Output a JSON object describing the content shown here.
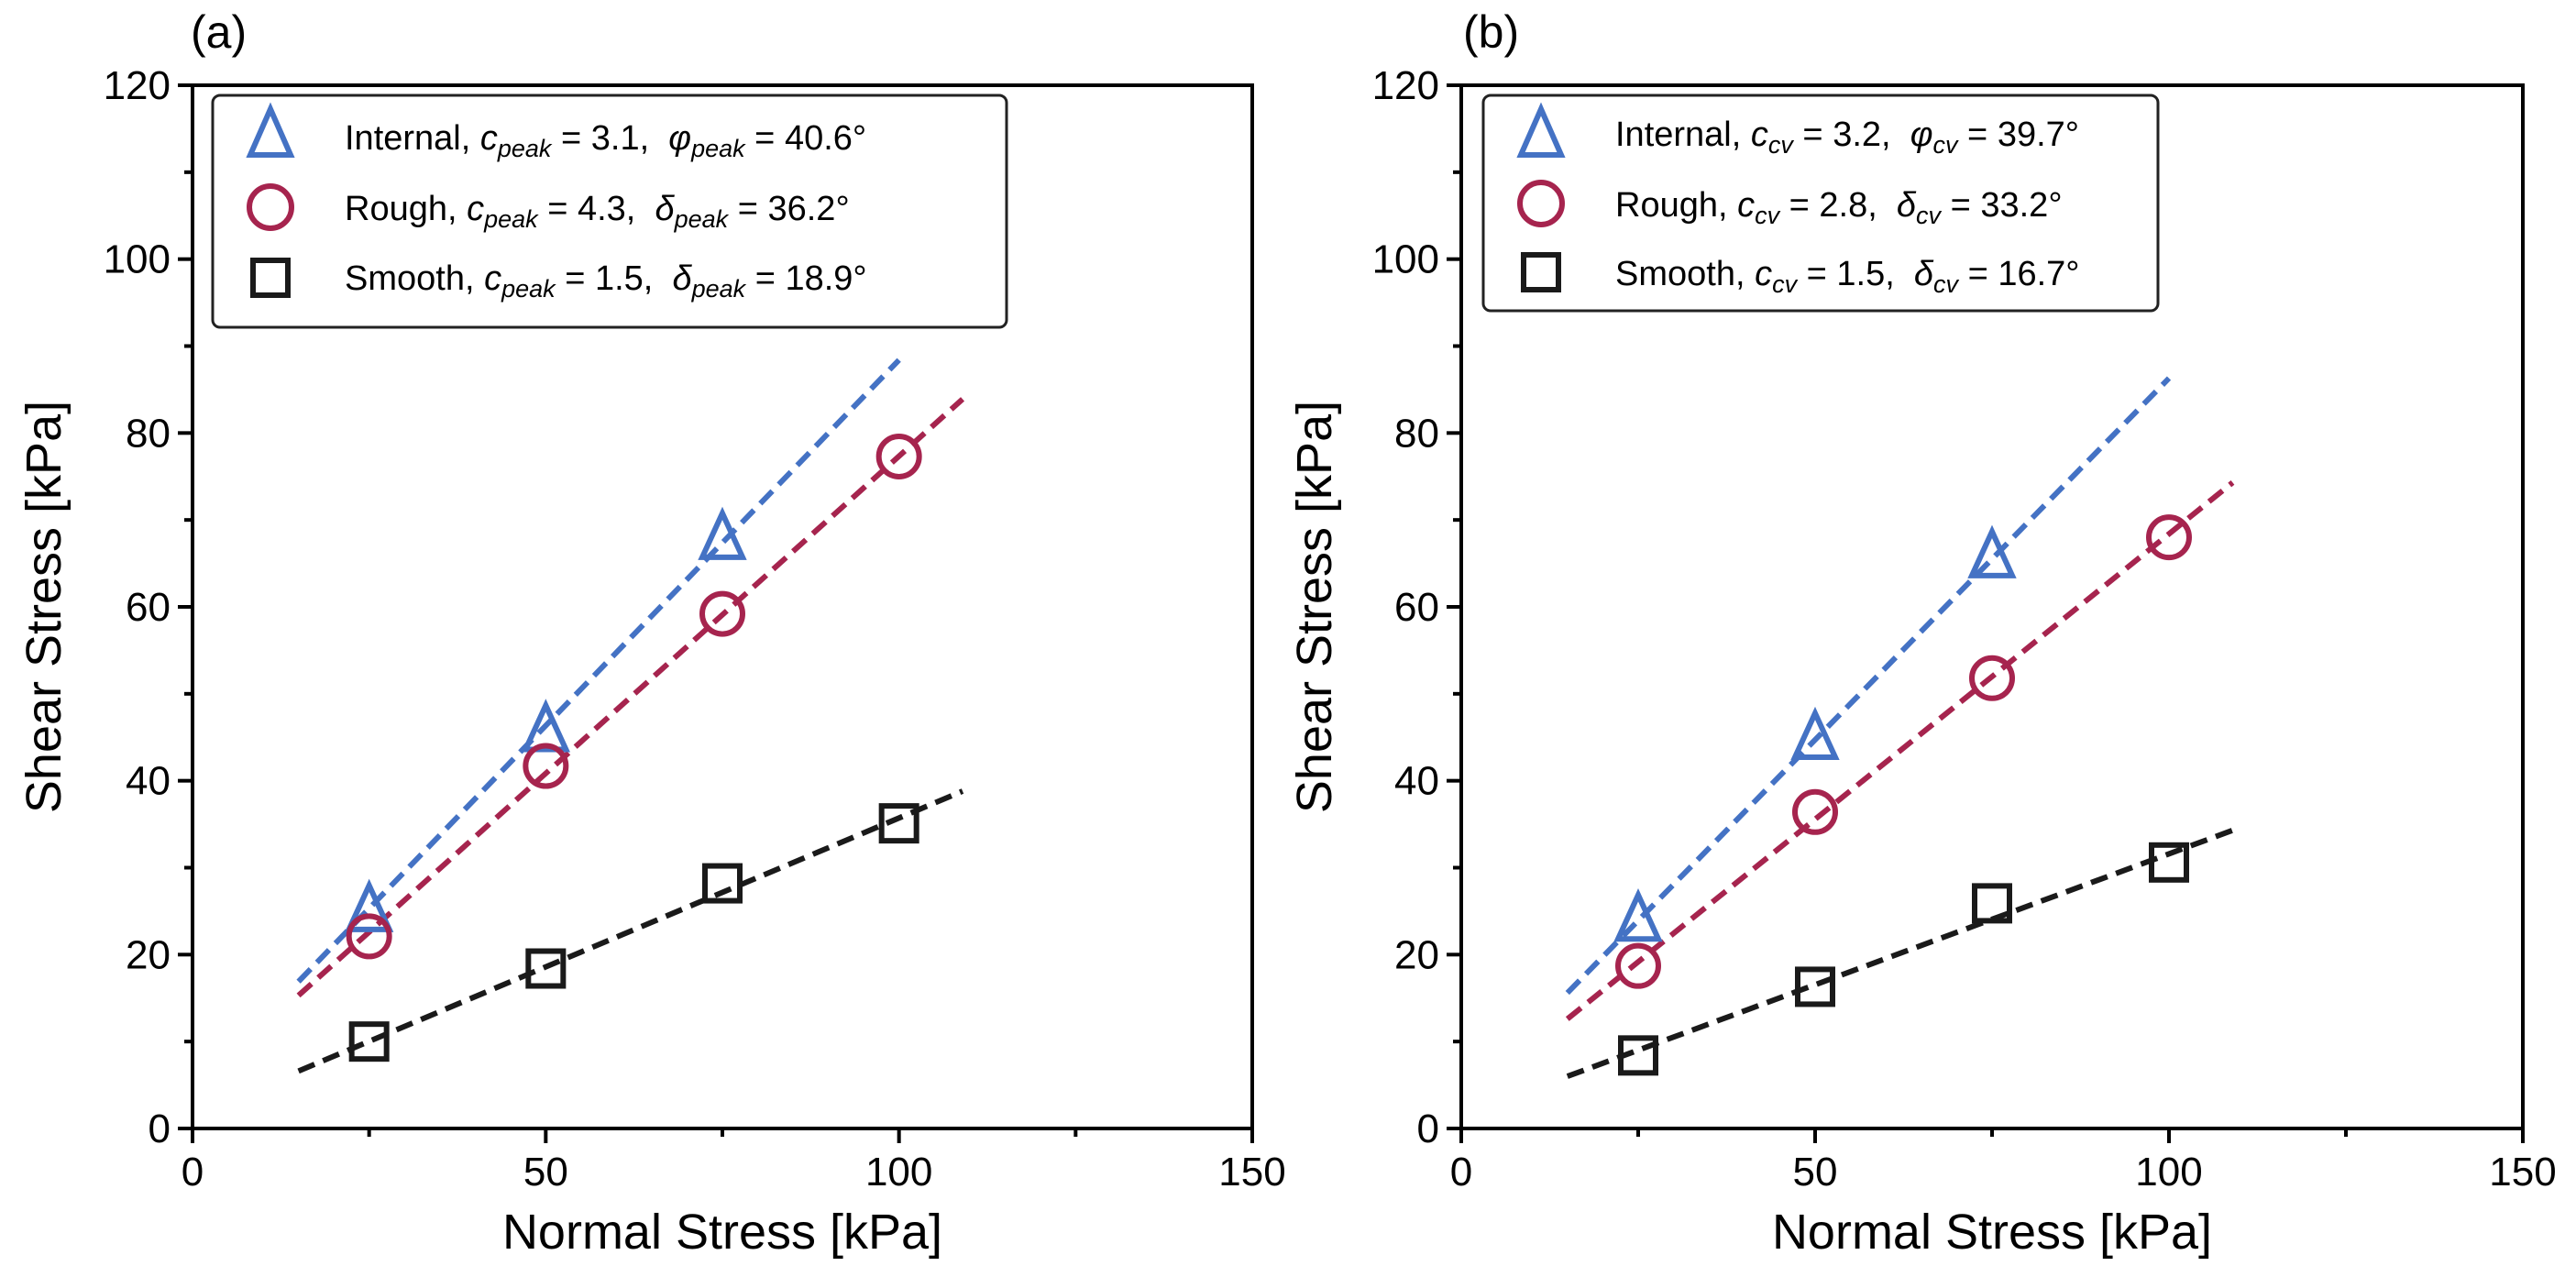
{
  "figure": {
    "domain": "Chart"
  },
  "colors": {
    "internal": "#4472c4",
    "rough": "#a6244e",
    "smooth": "#1a1a1a",
    "frame": "#000000"
  },
  "chart_data": [
    {
      "panel_label": "(a)",
      "type": "scatter",
      "xlabel": "Normal Stress [kPa]",
      "ylabel": "Shear Stress [kPa]",
      "xlim": [
        0,
        150
      ],
      "ylim": [
        0,
        120
      ],
      "xticks": [
        0,
        50,
        100,
        150
      ],
      "yticks": [
        0,
        20,
        40,
        60,
        80,
        100,
        120
      ],
      "xtick_labels": [
        "0",
        "50",
        "100",
        "150"
      ],
      "ytick_labels": [
        "0",
        "20",
        "40",
        "60",
        "80",
        "100",
        "120"
      ],
      "legend_position": "top-left",
      "fit_range": [
        15,
        110
      ],
      "series": [
        {
          "key": "internal",
          "name": "Internal",
          "marker": "triangle",
          "x": [
            25,
            50,
            75
          ],
          "y": [
            24.8,
            45.5,
            67.6
          ],
          "fit": {
            "x": [
              15,
              100
            ],
            "y": [
              16.9,
              88.4
            ]
          },
          "legend": {
            "prefix": "Internal, ",
            "cvar": "c",
            "csub": "peak",
            "c": "3.1",
            "avar": "φ",
            "asub": "peak",
            "angle": "40.6°"
          }
        },
        {
          "key": "rough",
          "name": "Rough",
          "marker": "circle",
          "x": [
            25,
            50,
            75,
            100
          ],
          "y": [
            22.1,
            41.7,
            59.2,
            77.3
          ],
          "fit": {
            "x": [
              15,
              109
            ],
            "y": [
              15.3,
              83.9
            ]
          },
          "legend": {
            "prefix": "Rough, ",
            "cvar": "c",
            "csub": "peak",
            "c": "4.3",
            "avar": "δ",
            "asub": "peak",
            "angle": "36.2°"
          }
        },
        {
          "key": "smooth",
          "name": "Smooth",
          "marker": "square",
          "x": [
            25,
            50,
            75,
            100
          ],
          "y": [
            10.0,
            18.4,
            28.2,
            35.1
          ],
          "fit": {
            "x": [
              15,
              109
            ],
            "y": [
              6.6,
              38.8
            ]
          },
          "legend": {
            "prefix": "Smooth, ",
            "cvar": "c",
            "csub": "peak",
            "c": "1.5",
            "avar": "δ",
            "asub": "peak",
            "angle": "18.9°"
          }
        }
      ]
    },
    {
      "panel_label": "(b)",
      "type": "scatter",
      "xlabel": "Normal Stress [kPa]",
      "ylabel": "Shear Stress [kPa]",
      "xlim": [
        0,
        150
      ],
      "ylim": [
        0,
        120
      ],
      "xticks": [
        0,
        50,
        100,
        150
      ],
      "yticks": [
        0,
        20,
        40,
        60,
        80,
        100,
        120
      ],
      "xtick_labels": [
        "0",
        "50",
        "100",
        "150"
      ],
      "ytick_labels": [
        "0",
        "20",
        "40",
        "60",
        "80",
        "100",
        "120"
      ],
      "legend_position": "top-left",
      "fit_range": [
        15,
        110
      ],
      "series": [
        {
          "key": "internal",
          "name": "Internal",
          "marker": "triangle",
          "x": [
            25,
            50,
            75
          ],
          "y": [
            23.7,
            44.6,
            65.5
          ],
          "fit": {
            "x": [
              15,
              100
            ],
            "y": [
              15.6,
              86.3
            ]
          },
          "legend": {
            "prefix": "Internal, ",
            "cvar": "c",
            "csub": "cv",
            "c": "3.2",
            "avar": "φ",
            "asub": "cv",
            "angle": "39.7°"
          }
        },
        {
          "key": "rough",
          "name": "Rough",
          "marker": "circle",
          "x": [
            25,
            50,
            75,
            100
          ],
          "y": [
            18.7,
            36.4,
            51.8,
            68.0
          ],
          "fit": {
            "x": [
              15,
              109
            ],
            "y": [
              12.6,
              74.3
            ]
          },
          "legend": {
            "prefix": "Rough, ",
            "cvar": "c",
            "csub": "cv",
            "c": "2.8",
            "avar": "δ",
            "asub": "cv",
            "angle": "33.2°"
          }
        },
        {
          "key": "smooth",
          "name": "Smooth",
          "marker": "square",
          "x": [
            25,
            50,
            75,
            100
          ],
          "y": [
            8.4,
            16.3,
            25.9,
            30.6
          ],
          "fit": {
            "x": [
              15,
              109
            ],
            "y": [
              6.0,
              34.3
            ]
          },
          "legend": {
            "prefix": "Smooth, ",
            "cvar": "c",
            "csub": "cv",
            "c": "1.5",
            "avar": "δ",
            "asub": "cv",
            "angle": "16.7°"
          }
        }
      ]
    }
  ]
}
